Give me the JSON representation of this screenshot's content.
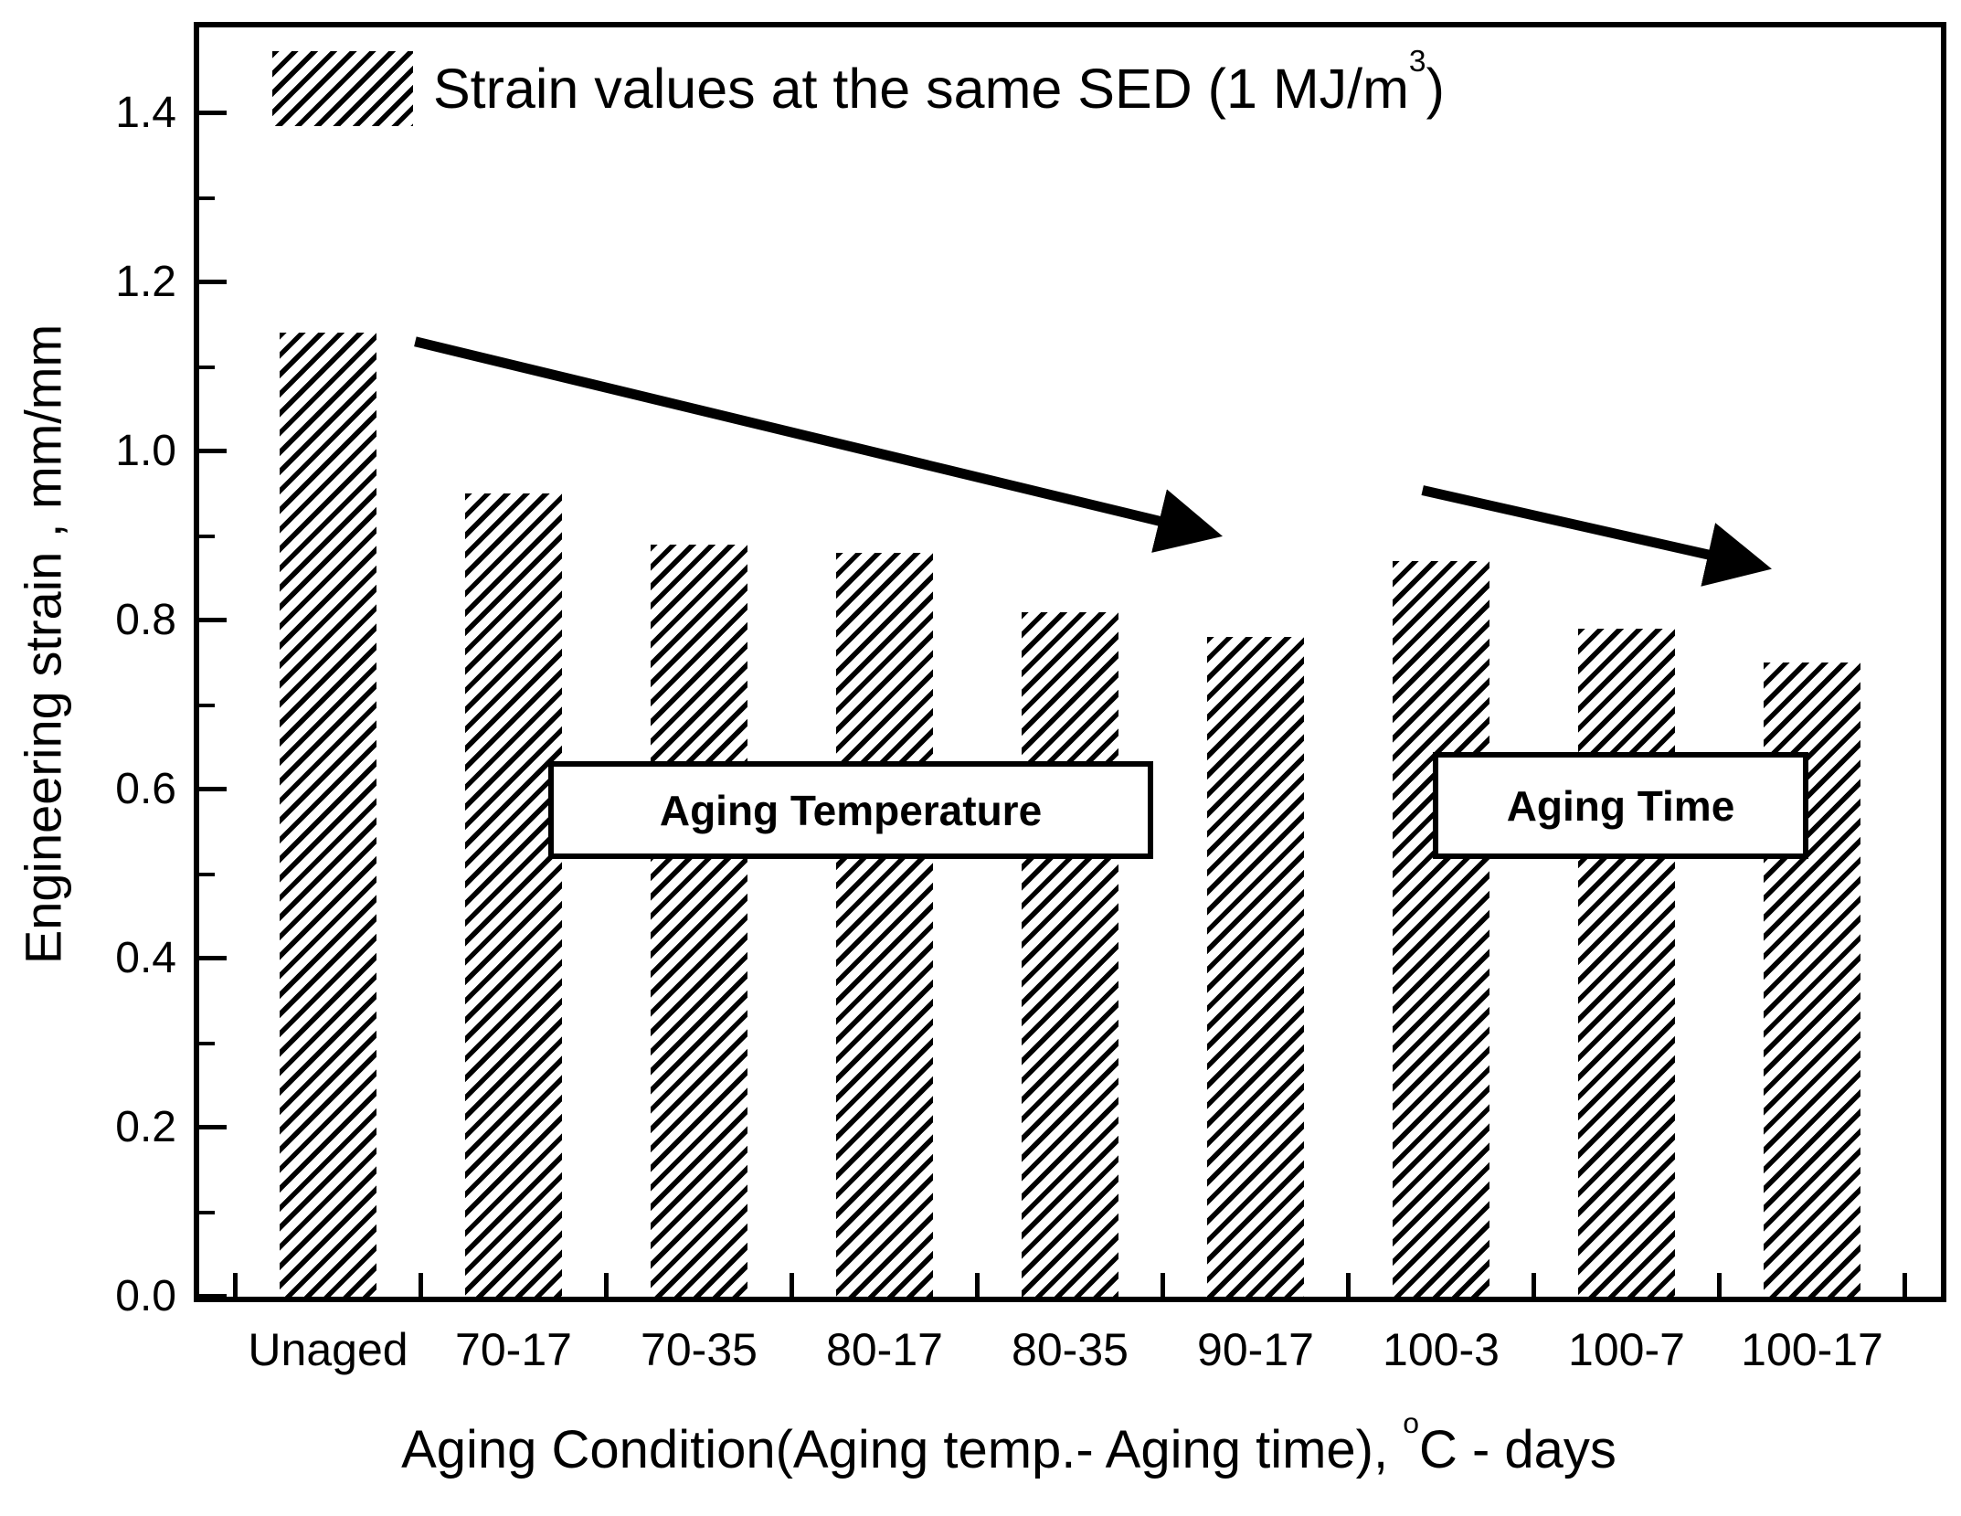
{
  "chart_data": {
    "type": "bar",
    "title": "",
    "categories": [
      "Unaged",
      "70-17",
      "70-35",
      "80-17",
      "80-35",
      "90-17",
      "100-3",
      "100-7",
      "100-17"
    ],
    "values": [
      1.14,
      0.95,
      0.89,
      0.88,
      0.81,
      0.78,
      0.87,
      0.79,
      0.75
    ],
    "series_label": "Strain values at the same SED (1 MJ/m³)",
    "xlabel": "Aging Condition(Aging temp.- Aging time), °C - days",
    "ylabel": "Engineering strain , mm/mm",
    "ylim": [
      0,
      1.5
    ],
    "yticks": [
      "0.0",
      "0.2",
      "0.4",
      "0.6",
      "0.8",
      "1.0",
      "1.2",
      "1.4"
    ],
    "ytick_step": 0.2,
    "minor_tick_step": 0.1,
    "grid": false,
    "legend_position": "inside top-left",
    "bar_style": "black diagonal hatch ///, no fill",
    "annotations": [
      {
        "label": "Aging Temperature",
        "arrow": {
          "from": [
            0.47,
            1.13
          ],
          "to": [
            4.72,
            0.905
          ]
        }
      },
      {
        "label": "Aging Time",
        "arrow": {
          "from": [
            5.9,
            0.954
          ],
          "to": [
            7.68,
            0.866
          ]
        }
      }
    ]
  },
  "legend": {
    "text_pre": "Strain values at the same SED (1 MJ/m",
    "sup": "3",
    "text_post": ")"
  },
  "xaxis_title": {
    "pre": "Aging Condition(Aging temp.- Aging time), ",
    "sup": "o",
    "post": "C - days"
  },
  "yaxis_title": "Engineering strain , mm/mm",
  "colors": {
    "foreground": "#000000",
    "background": "#ffffff"
  }
}
